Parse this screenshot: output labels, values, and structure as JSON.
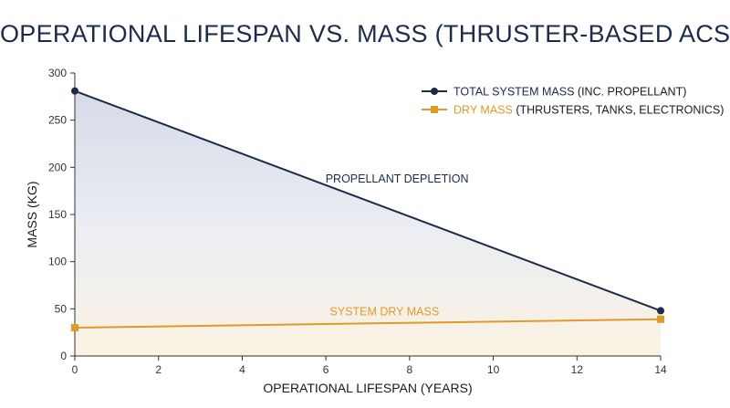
{
  "chart_data": {
    "type": "line",
    "title": "OPERATIONAL LIFESPAN VS. MASS (THRUSTER-BASED ACS)",
    "xlabel": "OPERATIONAL LIFESPAN (YEARS)",
    "ylabel": "MASS (KG)",
    "xlim": [
      0,
      14
    ],
    "ylim": [
      0,
      300
    ],
    "xticks": [
      0,
      2,
      4,
      6,
      8,
      10,
      12,
      14
    ],
    "yticks": [
      0,
      50,
      100,
      150,
      200,
      250,
      300
    ],
    "grid": false,
    "legend_position": "top-right",
    "series": [
      {
        "name_prefix": "TOTAL SYSTEM MASS",
        "name_suffix": " (INC. PROPELLANT)",
        "x": [
          0,
          14
        ],
        "y": [
          281,
          48
        ],
        "color": "#1c2b4a",
        "marker": "circle"
      },
      {
        "name_prefix": "DRY MASS",
        "name_suffix": " (THRUSTERS, TANKS, ELECTRONICS)",
        "x": [
          0,
          14
        ],
        "y": [
          30,
          39
        ],
        "color": "#e09a2a",
        "marker": "square"
      }
    ],
    "annotations": [
      {
        "text": "PROPELLANT DEPLETION",
        "x": 7.7,
        "y": 184,
        "color": "#1c2b4a"
      },
      {
        "text": "SYSTEM DRY MASS",
        "x": 7.4,
        "y": 43,
        "color": "#e09a2a"
      }
    ]
  }
}
